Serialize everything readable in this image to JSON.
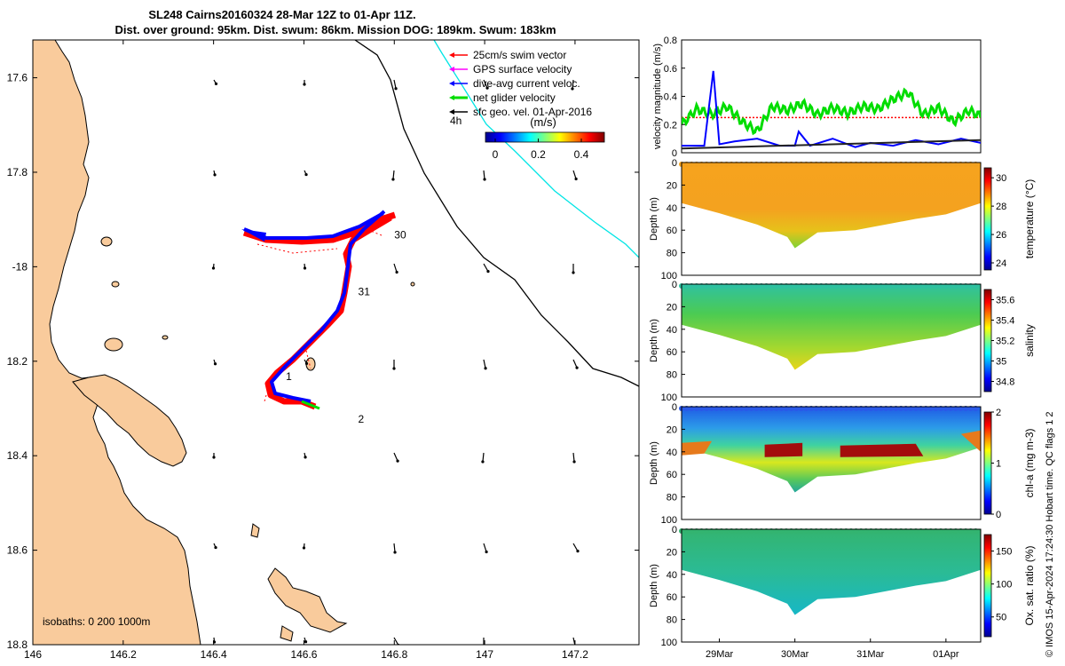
{
  "title": {
    "line1": "SL248 Cairns20160324 28-Mar 12Z to 01-Apr 11Z.",
    "line2": "Dist. over ground: 95km. Dist. swum: 86km. Mission DOG: 189km. Swum: 183km"
  },
  "credit": "© IMOS 15-Apr-2024 17:24:30 Hobart time. QC flags 1 2",
  "colors": {
    "land": "#F9CB9C",
    "track_swim": "#FF0000",
    "track_current": "#0000FF",
    "net_glider": "#00DD00",
    "isobath_200": "#000000",
    "isobath_1000": "#00E5E5",
    "gps": "#FF00FF"
  },
  "map": {
    "lon_ticks": [
      "146",
      "146.2",
      "146.4",
      "146.6",
      "146.8",
      "147",
      "147.2"
    ],
    "lat_ticks": [
      "17.6",
      "17.8",
      "-18",
      "18.2",
      "18.4",
      "18.6",
      "18.8"
    ],
    "isobaths_label": "isobaths: 0   200  1000m",
    "day_labels": [
      {
        "text": "30",
        "lon": 146.8,
        "lat": -17.94
      },
      {
        "text": "31",
        "lon": 146.72,
        "lat": -18.06
      },
      {
        "text": "1",
        "lon": 146.56,
        "lat": -18.24
      },
      {
        "text": "2",
        "lon": 146.72,
        "lat": -18.33
      }
    ],
    "legend": {
      "items": [
        {
          "label": "25cm/s swim vector",
          "color": "#FF0000"
        },
        {
          "label": "GPS surface velocity",
          "color": "#FF00FF"
        },
        {
          "label": "dive-avg current veloc.",
          "color": "#0000FF"
        },
        {
          "label": "net glider velocity",
          "color": "#00DD00"
        },
        {
          "label": "sfc geo. vel. 01-Apr-2016",
          "color": "#000000"
        }
      ],
      "scale_label": "4h",
      "colorbar_title": "(m/s)",
      "colorbar_ticks": [
        "0",
        "0.2",
        "0.4"
      ]
    }
  },
  "chart_data": [
    {
      "type": "line",
      "title": "",
      "ylabel": "velocity magnitude (m/s)",
      "ylim": [
        0,
        0.8
      ],
      "yticks": [
        "0",
        "0.2",
        "0.4",
        "0.6",
        "0.8"
      ],
      "xlim_days": [
        28.5,
        32.46
      ],
      "series": [
        {
          "name": "25cm/s swim vector",
          "color": "#FF0000",
          "x": [
            28.5,
            32.46
          ],
          "values": [
            0.25,
            0.25
          ]
        },
        {
          "name": "net glider velocity",
          "color": "#00DD00",
          "x": [
            28.5,
            28.7,
            28.9,
            29.1,
            29.3,
            29.5,
            29.7,
            29.9,
            30.1,
            30.3,
            30.5,
            30.7,
            30.9,
            31.1,
            31.3,
            31.5,
            31.7,
            31.9,
            32.1,
            32.3,
            32.46
          ],
          "values": [
            0.2,
            0.31,
            0.27,
            0.33,
            0.22,
            0.15,
            0.33,
            0.3,
            0.35,
            0.27,
            0.32,
            0.28,
            0.33,
            0.31,
            0.38,
            0.43,
            0.27,
            0.32,
            0.22,
            0.3,
            0.26
          ]
        },
        {
          "name": "dive-avg current veloc.",
          "color": "#0000FF",
          "x": [
            28.5,
            28.8,
            28.92,
            29.0,
            29.2,
            29.5,
            29.8,
            30.0,
            30.05,
            30.2,
            30.5,
            30.8,
            31.0,
            31.3,
            31.6,
            31.9,
            32.2,
            32.46
          ],
          "values": [
            0.05,
            0.05,
            0.58,
            0.06,
            0.08,
            0.1,
            0.05,
            0.05,
            0.15,
            0.05,
            0.1,
            0.04,
            0.07,
            0.05,
            0.09,
            0.06,
            0.1,
            0.07
          ]
        },
        {
          "name": "sfc geo. vel. 01-Apr-2016",
          "color": "#222222",
          "x": [
            28.5,
            32.46
          ],
          "values": [
            0.03,
            0.09
          ]
        }
      ]
    },
    {
      "type": "heatmap",
      "ylabel": "Depth (m)",
      "colorbar_label": "temperature (°C)",
      "ylim": [
        100,
        0
      ],
      "yticks": [
        "0",
        "20",
        "40",
        "60",
        "80",
        "100"
      ],
      "cticks": [
        "24",
        "26",
        "28",
        "30"
      ],
      "crange": [
        23.5,
        30.7
      ],
      "dominant_value": 29,
      "max_depth_profile": {
        "x": [
          28.5,
          29.0,
          29.5,
          29.9,
          30.0,
          30.3,
          30.8,
          31.2,
          31.6,
          32.0,
          32.46
        ],
        "depth": [
          36,
          45,
          55,
          66,
          76,
          62,
          60,
          55,
          50,
          46,
          36
        ]
      }
    },
    {
      "type": "heatmap",
      "ylabel": "Depth (m)",
      "colorbar_label": "salinity",
      "ylim": [
        100,
        0
      ],
      "yticks": [
        "0",
        "20",
        "40",
        "60",
        "80",
        "100"
      ],
      "cticks": [
        "34.8",
        "35",
        "35.2",
        "35.4",
        "35.6"
      ],
      "crange": [
        34.7,
        35.7
      ],
      "dominant_value": 35.3
    },
    {
      "type": "heatmap",
      "ylabel": "Depth (m)",
      "colorbar_label": "chl-a (mg m-3)",
      "ylim": [
        100,
        0
      ],
      "yticks": [
        "0",
        "20",
        "40",
        "60",
        "80",
        "100"
      ],
      "cticks": [
        "0",
        "1",
        "2"
      ],
      "crange": [
        0,
        2
      ],
      "surface_value": 0.3,
      "subsurface_max_depth": 40
    },
    {
      "type": "heatmap",
      "ylabel": "Depth (m)",
      "colorbar_label": "Ox. sat. ratio (%)",
      "ylim": [
        100,
        0
      ],
      "yticks": [
        "0",
        "20",
        "40",
        "60",
        "80",
        "100"
      ],
      "cticks": [
        "50",
        "100",
        "150"
      ],
      "crange": [
        20,
        175
      ],
      "dominant_value": 108
    }
  ],
  "time_axis": {
    "labels": [
      "29Mar",
      "30Mar",
      "31Mar",
      "01Apr"
    ],
    "days": [
      29,
      30,
      31,
      32
    ]
  }
}
